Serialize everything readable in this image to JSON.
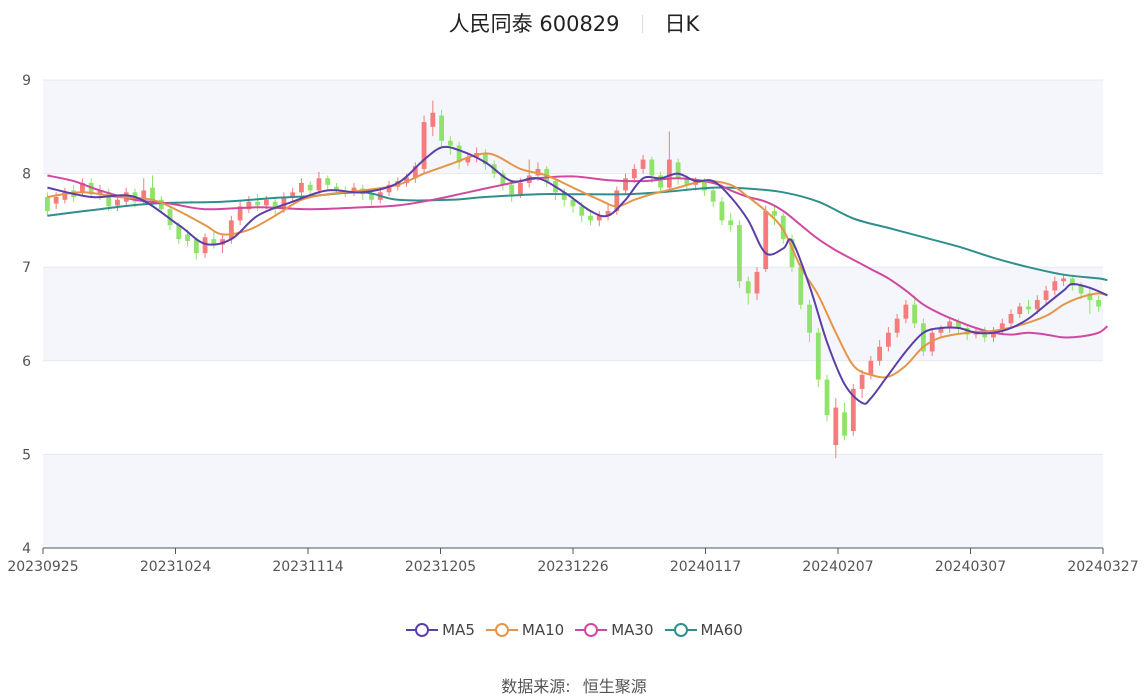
{
  "header": {
    "name": "人民同泰",
    "code": "600829",
    "period": "日K"
  },
  "footer": {
    "source_label": "数据来源:",
    "source_value": "恒生聚源"
  },
  "colors": {
    "up": "#f47c7c",
    "down": "#8fe36a",
    "MA5": "#5b3fa8",
    "MA10": "#e4954a",
    "MA30": "#d048a0",
    "MA60": "#2e8f8c",
    "band": "#f5f6fb",
    "grid": "#e6e8ef"
  },
  "chart_data": {
    "type": "candlestick",
    "title": "人民同泰 600829 日K",
    "ylim": [
      4,
      9
    ],
    "yticks": [
      4,
      5,
      6,
      7,
      8,
      9
    ],
    "xticks": [
      "20230925",
      "20231024",
      "20231114",
      "20231205",
      "20231226",
      "20240117",
      "20240207",
      "20240307",
      "20240327"
    ],
    "legend": [
      "MA5",
      "MA10",
      "MA30",
      "MA60"
    ],
    "legend_position": "bottom",
    "candles": [
      [
        7.75,
        7.6,
        7.8,
        7.55
      ],
      [
        7.68,
        7.75,
        7.8,
        7.62
      ],
      [
        7.72,
        7.8,
        7.85,
        7.68
      ],
      [
        7.82,
        7.75,
        7.88,
        7.7
      ],
      [
        7.8,
        7.9,
        7.95,
        7.76
      ],
      [
        7.9,
        7.78,
        7.95,
        7.74
      ],
      [
        7.78,
        7.82,
        7.88,
        7.72
      ],
      [
        7.8,
        7.65,
        7.84,
        7.6
      ],
      [
        7.66,
        7.72,
        7.76,
        7.6
      ],
      [
        7.7,
        7.8,
        7.85,
        7.66
      ],
      [
        7.8,
        7.7,
        7.84,
        7.64
      ],
      [
        7.7,
        7.82,
        7.95,
        7.66
      ],
      [
        7.85,
        7.72,
        7.98,
        7.68
      ],
      [
        7.72,
        7.62,
        7.76,
        7.58
      ],
      [
        7.62,
        7.45,
        7.66,
        7.4
      ],
      [
        7.45,
        7.3,
        7.48,
        7.25
      ],
      [
        7.35,
        7.28,
        7.4,
        7.22
      ],
      [
        7.3,
        7.15,
        7.32,
        7.08
      ],
      [
        7.15,
        7.32,
        7.36,
        7.1
      ],
      [
        7.3,
        7.25,
        7.38,
        7.2
      ],
      [
        7.24,
        7.3,
        7.36,
        7.15
      ],
      [
        7.3,
        7.5,
        7.55,
        7.25
      ],
      [
        7.5,
        7.65,
        7.7,
        7.45
      ],
      [
        7.62,
        7.7,
        7.76,
        7.58
      ],
      [
        7.7,
        7.66,
        7.78,
        7.6
      ],
      [
        7.66,
        7.72,
        7.76,
        7.62
      ],
      [
        7.7,
        7.62,
        7.74,
        7.56
      ],
      [
        7.62,
        7.75,
        7.8,
        7.58
      ],
      [
        7.75,
        7.8,
        7.85,
        7.7
      ],
      [
        7.8,
        7.9,
        7.95,
        7.76
      ],
      [
        7.88,
        7.82,
        7.92,
        7.76
      ],
      [
        7.82,
        7.95,
        8.02,
        7.78
      ],
      [
        7.95,
        7.88,
        7.98,
        7.82
      ],
      [
        7.86,
        7.82,
        7.9,
        7.78
      ],
      [
        7.82,
        7.8,
        7.86,
        7.75
      ],
      [
        7.8,
        7.85,
        7.9,
        7.76
      ],
      [
        7.84,
        7.78,
        7.88,
        7.72
      ],
      [
        7.78,
        7.72,
        7.82,
        7.66
      ],
      [
        7.72,
        7.8,
        7.84,
        7.68
      ],
      [
        7.8,
        7.88,
        7.92,
        7.76
      ],
      [
        7.86,
        7.92,
        7.96,
        7.82
      ],
      [
        7.9,
        7.96,
        8.0,
        7.86
      ],
      [
        7.95,
        8.08,
        8.12,
        7.9
      ],
      [
        8.05,
        8.55,
        8.62,
        8.0
      ],
      [
        8.5,
        8.65,
        8.78,
        8.4
      ],
      [
        8.62,
        8.35,
        8.68,
        8.28
      ],
      [
        8.35,
        8.3,
        8.4,
        8.2
      ],
      [
        8.3,
        8.12,
        8.34,
        8.05
      ],
      [
        8.12,
        8.18,
        8.22,
        8.08
      ],
      [
        8.18,
        8.22,
        8.28,
        8.12
      ],
      [
        8.22,
        8.1,
        8.26,
        8.04
      ],
      [
        8.1,
        8.0,
        8.14,
        7.95
      ],
      [
        8.0,
        7.88,
        8.04,
        7.82
      ],
      [
        7.88,
        7.78,
        7.92,
        7.7
      ],
      [
        7.78,
        7.9,
        7.95,
        7.74
      ],
      [
        7.9,
        7.98,
        8.15,
        7.85
      ],
      [
        7.98,
        8.05,
        8.12,
        7.92
      ],
      [
        8.05,
        7.92,
        8.08,
        7.86
      ],
      [
        7.92,
        7.8,
        7.95,
        7.72
      ],
      [
        7.8,
        7.72,
        7.84,
        7.65
      ],
      [
        7.72,
        7.65,
        7.76,
        7.58
      ],
      [
        7.65,
        7.55,
        7.7,
        7.48
      ],
      [
        7.55,
        7.5,
        7.6,
        7.45
      ],
      [
        7.5,
        7.55,
        7.6,
        7.44
      ],
      [
        7.55,
        7.6,
        7.68,
        7.5
      ],
      [
        7.6,
        7.82,
        7.86,
        7.56
      ],
      [
        7.82,
        7.95,
        8.0,
        7.78
      ],
      [
        7.95,
        8.05,
        8.1,
        7.9
      ],
      [
        8.05,
        8.15,
        8.2,
        8.0
      ],
      [
        8.15,
        7.98,
        8.18,
        7.9
      ],
      [
        7.98,
        7.85,
        8.02,
        7.8
      ],
      [
        7.85,
        8.15,
        8.45,
        7.82
      ],
      [
        8.12,
        7.95,
        8.16,
        7.88
      ],
      [
        7.95,
        7.88,
        7.98,
        7.82
      ],
      [
        7.88,
        7.92,
        7.96,
        7.82
      ],
      [
        7.92,
        7.82,
        7.95,
        7.76
      ],
      [
        7.82,
        7.7,
        7.86,
        7.64
      ],
      [
        7.7,
        7.5,
        7.75,
        7.45
      ],
      [
        7.5,
        7.45,
        7.58,
        7.38
      ],
      [
        7.45,
        6.85,
        7.5,
        6.78
      ],
      [
        6.85,
        6.72,
        6.9,
        6.6
      ],
      [
        6.72,
        6.95,
        7.0,
        6.65
      ],
      [
        6.98,
        7.6,
        7.66,
        6.95
      ],
      [
        7.6,
        7.55,
        7.66,
        7.45
      ],
      [
        7.55,
        7.3,
        7.58,
        7.25
      ],
      [
        7.3,
        7.0,
        7.35,
        6.95
      ],
      [
        7.0,
        6.6,
        7.05,
        6.55
      ],
      [
        6.6,
        6.3,
        6.65,
        6.2
      ],
      [
        6.3,
        5.8,
        6.35,
        5.72
      ],
      [
        5.8,
        5.42,
        5.85,
        5.35
      ],
      [
        5.1,
        5.5,
        5.6,
        4.96
      ],
      [
        5.45,
        5.2,
        5.55,
        5.15
      ],
      [
        5.25,
        5.7,
        5.75,
        5.2
      ],
      [
        5.7,
        5.85,
        5.9,
        5.6
      ],
      [
        5.85,
        6.0,
        6.05,
        5.8
      ],
      [
        6.0,
        6.15,
        6.22,
        5.95
      ],
      [
        6.15,
        6.3,
        6.36,
        6.1
      ],
      [
        6.3,
        6.45,
        6.5,
        6.25
      ],
      [
        6.45,
        6.6,
        6.65,
        6.4
      ],
      [
        6.6,
        6.4,
        6.7,
        6.35
      ],
      [
        6.4,
        6.1,
        6.45,
        6.05
      ],
      [
        6.1,
        6.3,
        6.35,
        6.05
      ],
      [
        6.3,
        6.35,
        6.38,
        6.25
      ],
      [
        6.35,
        6.42,
        6.46,
        6.3
      ],
      [
        6.42,
        6.35,
        6.45,
        6.28
      ],
      [
        6.35,
        6.28,
        6.38,
        6.22
      ],
      [
        6.28,
        6.32,
        6.36,
        6.24
      ],
      [
        6.32,
        6.25,
        6.36,
        6.2
      ],
      [
        6.25,
        6.32,
        6.36,
        6.2
      ],
      [
        6.32,
        6.4,
        6.45,
        6.28
      ],
      [
        6.4,
        6.5,
        6.55,
        6.36
      ],
      [
        6.5,
        6.58,
        6.62,
        6.46
      ],
      [
        6.58,
        6.55,
        6.65,
        6.5
      ],
      [
        6.55,
        6.65,
        6.7,
        6.5
      ],
      [
        6.65,
        6.75,
        6.8,
        6.6
      ],
      [
        6.75,
        6.85,
        6.9,
        6.7
      ],
      [
        6.85,
        6.88,
        6.92,
        6.8
      ],
      [
        6.88,
        6.8,
        6.92,
        6.75
      ],
      [
        6.8,
        6.72,
        6.84,
        6.66
      ],
      [
        6.72,
        6.65,
        6.78,
        6.5
      ],
      [
        6.65,
        6.58,
        6.7,
        6.52
      ]
    ],
    "ma": {
      "MA5": [
        [
          0,
          7.85
        ],
        [
          5,
          7.75
        ],
        [
          10,
          7.75
        ],
        [
          15,
          7.45
        ],
        [
          18,
          7.25
        ],
        [
          21,
          7.3
        ],
        [
          24,
          7.55
        ],
        [
          28,
          7.7
        ],
        [
          32,
          7.82
        ],
        [
          36,
          7.8
        ],
        [
          40,
          7.9
        ],
        [
          43,
          8.15
        ],
        [
          45,
          8.28
        ],
        [
          47,
          8.25
        ],
        [
          50,
          8.12
        ],
        [
          53,
          7.92
        ],
        [
          56,
          7.95
        ],
        [
          59,
          7.8
        ],
        [
          62,
          7.6
        ],
        [
          64,
          7.55
        ],
        [
          66,
          7.72
        ],
        [
          68,
          7.95
        ],
        [
          70,
          7.95
        ],
        [
          72,
          8.0
        ],
        [
          74,
          7.92
        ],
        [
          76,
          7.92
        ],
        [
          78,
          7.75
        ],
        [
          80,
          7.5
        ],
        [
          82,
          7.15
        ],
        [
          84,
          7.2
        ],
        [
          85,
          7.28
        ],
        [
          87,
          6.8
        ],
        [
          89,
          6.2
        ],
        [
          91,
          5.75
        ],
        [
          93,
          5.55
        ],
        [
          94,
          5.6
        ],
        [
          96,
          5.85
        ],
        [
          98,
          6.1
        ],
        [
          100,
          6.3
        ],
        [
          102,
          6.35
        ],
        [
          104,
          6.35
        ],
        [
          106,
          6.3
        ],
        [
          108,
          6.3
        ],
        [
          110,
          6.35
        ],
        [
          112,
          6.45
        ],
        [
          114,
          6.6
        ],
        [
          116,
          6.75
        ],
        [
          117,
          6.82
        ],
        [
          119,
          6.78
        ],
        [
          121,
          6.7
        ]
      ],
      "MA10": [
        [
          0,
          7.75
        ],
        [
          4,
          7.8
        ],
        [
          8,
          7.75
        ],
        [
          12,
          7.72
        ],
        [
          15,
          7.6
        ],
        [
          18,
          7.45
        ],
        [
          20,
          7.35
        ],
        [
          23,
          7.4
        ],
        [
          26,
          7.55
        ],
        [
          29,
          7.72
        ],
        [
          32,
          7.78
        ],
        [
          36,
          7.82
        ],
        [
          40,
          7.88
        ],
        [
          43,
          8.0
        ],
        [
          46,
          8.1
        ],
        [
          49,
          8.2
        ],
        [
          51,
          8.2
        ],
        [
          54,
          8.05
        ],
        [
          57,
          7.98
        ],
        [
          60,
          7.85
        ],
        [
          63,
          7.72
        ],
        [
          65,
          7.65
        ],
        [
          67,
          7.72
        ],
        [
          69,
          7.78
        ],
        [
          72,
          7.85
        ],
        [
          75,
          7.92
        ],
        [
          78,
          7.88
        ],
        [
          80,
          7.75
        ],
        [
          82,
          7.6
        ],
        [
          84,
          7.4
        ],
        [
          86,
          7.0
        ],
        [
          88,
          6.7
        ],
        [
          90,
          6.3
        ],
        [
          92,
          5.95
        ],
        [
          94,
          5.85
        ],
        [
          96,
          5.83
        ],
        [
          98,
          5.95
        ],
        [
          100,
          6.15
        ],
        [
          102,
          6.25
        ],
        [
          105,
          6.3
        ],
        [
          108,
          6.32
        ],
        [
          111,
          6.38
        ],
        [
          114,
          6.48
        ],
        [
          116,
          6.6
        ],
        [
          118,
          6.68
        ],
        [
          120,
          6.72
        ],
        [
          121,
          6.7
        ]
      ],
      "MA30": [
        [
          0,
          7.98
        ],
        [
          3,
          7.92
        ],
        [
          6,
          7.82
        ],
        [
          10,
          7.72
        ],
        [
          14,
          7.68
        ],
        [
          18,
          7.62
        ],
        [
          24,
          7.64
        ],
        [
          30,
          7.62
        ],
        [
          36,
          7.64
        ],
        [
          40,
          7.66
        ],
        [
          44,
          7.72
        ],
        [
          48,
          7.8
        ],
        [
          52,
          7.88
        ],
        [
          56,
          7.95
        ],
        [
          60,
          7.97
        ],
        [
          64,
          7.93
        ],
        [
          68,
          7.92
        ],
        [
          72,
          7.95
        ],
        [
          76,
          7.9
        ],
        [
          78,
          7.82
        ],
        [
          80,
          7.75
        ],
        [
          82,
          7.7
        ],
        [
          84,
          7.6
        ],
        [
          86,
          7.45
        ],
        [
          88,
          7.3
        ],
        [
          90,
          7.18
        ],
        [
          92,
          7.08
        ],
        [
          94,
          6.98
        ],
        [
          96,
          6.88
        ],
        [
          98,
          6.75
        ],
        [
          100,
          6.6
        ],
        [
          102,
          6.5
        ],
        [
          104,
          6.42
        ],
        [
          106,
          6.35
        ],
        [
          108,
          6.3
        ],
        [
          110,
          6.28
        ],
        [
          112,
          6.3
        ],
        [
          114,
          6.28
        ],
        [
          116,
          6.25
        ],
        [
          118,
          6.26
        ],
        [
          120,
          6.3
        ],
        [
          121,
          6.37
        ]
      ],
      "MA60": [
        [
          0,
          7.55
        ],
        [
          6,
          7.62
        ],
        [
          12,
          7.68
        ],
        [
          20,
          7.7
        ],
        [
          26,
          7.74
        ],
        [
          30,
          7.76
        ],
        [
          36,
          7.8
        ],
        [
          40,
          7.72
        ],
        [
          46,
          7.72
        ],
        [
          50,
          7.75
        ],
        [
          56,
          7.78
        ],
        [
          60,
          7.78
        ],
        [
          66,
          7.78
        ],
        [
          70,
          7.8
        ],
        [
          76,
          7.85
        ],
        [
          80,
          7.84
        ],
        [
          84,
          7.8
        ],
        [
          88,
          7.7
        ],
        [
          92,
          7.52
        ],
        [
          96,
          7.42
        ],
        [
          100,
          7.32
        ],
        [
          104,
          7.22
        ],
        [
          108,
          7.1
        ],
        [
          112,
          7.0
        ],
        [
          116,
          6.92
        ],
        [
          120,
          6.88
        ],
        [
          121,
          6.86
        ]
      ]
    }
  }
}
